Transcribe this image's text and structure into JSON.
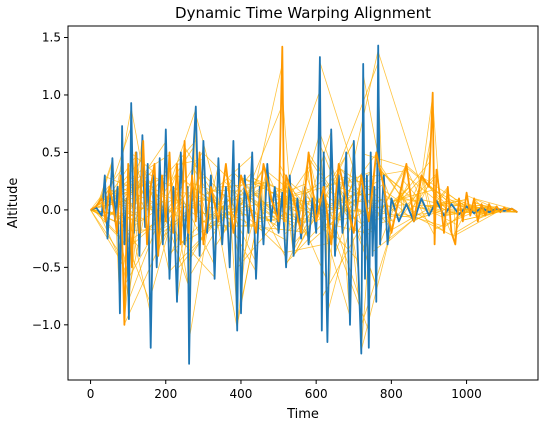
{
  "chart_data": {
    "type": "line",
    "title": "Dynamic Time Warping Alignment",
    "xlabel": "Time",
    "ylabel": "Altitude",
    "xlim": [
      -60,
      1190
    ],
    "ylim": [
      -1.48,
      1.6
    ],
    "x_ticks": [
      0,
      200,
      400,
      600,
      800,
      1000
    ],
    "y_ticks": [
      -1.0,
      -0.5,
      0.0,
      0.5,
      1.0,
      1.5
    ],
    "x_tick_labels": [
      "0",
      "200",
      "400",
      "600",
      "800",
      "1000"
    ],
    "y_tick_labels": [
      "−1.0",
      "−0.5",
      "0.0",
      "0.5",
      "1.0",
      "1.5"
    ],
    "grid": false,
    "legend": "none",
    "series": [
      {
        "color": "#1f77b4",
        "x": [
          0,
          15,
          30,
          38,
          45,
          52,
          58,
          65,
          72,
          78,
          84,
          90,
          96,
          102,
          108,
          115,
          122,
          130,
          138,
          145,
          152,
          160,
          168,
          176,
          184,
          192,
          200,
          210,
          220,
          230,
          240,
          250,
          258,
          262,
          270,
          280,
          290,
          300,
          310,
          320,
          330,
          340,
          350,
          360,
          370,
          380,
          390,
          395,
          400,
          410,
          420,
          430,
          440,
          450,
          460,
          470,
          480,
          490,
          500,
          510,
          520,
          530,
          540,
          550,
          560,
          570,
          580,
          590,
          600,
          605,
          610,
          615,
          620,
          630,
          640,
          650,
          660,
          670,
          680,
          690,
          700,
          710,
          720,
          725,
          730,
          735,
          740,
          745,
          750,
          755,
          760,
          765,
          770,
          780,
          790,
          800,
          820,
          840,
          860,
          880,
          900,
          920,
          940,
          960,
          980,
          1000,
          1020,
          1040,
          1060,
          1080,
          1100,
          1120,
          1135
        ],
        "y": [
          0.0,
          0.02,
          -0.05,
          0.3,
          -0.25,
          0.1,
          0.45,
          -0.1,
          0.2,
          -0.9,
          0.73,
          -0.3,
          0.1,
          -0.95,
          0.93,
          -0.2,
          0.5,
          -0.4,
          0.65,
          -0.15,
          0.4,
          -1.2,
          0.3,
          -0.5,
          0.45,
          -0.3,
          0.7,
          -0.6,
          0.2,
          -0.8,
          0.5,
          -0.3,
          0.2,
          -1.34,
          0.3,
          0.9,
          -0.4,
          0.6,
          -0.2,
          0.3,
          -0.6,
          0.45,
          -0.3,
          0.2,
          -0.5,
          0.6,
          -1.05,
          0.4,
          -0.9,
          0.3,
          -0.2,
          0.5,
          -0.6,
          0.2,
          -0.3,
          0.4,
          -0.1,
          0.2,
          -0.2,
          0.15,
          -0.5,
          0.3,
          -0.4,
          0.1,
          -0.25,
          0.2,
          -0.3,
          0.1,
          -0.2,
          0.3,
          1.33,
          -1.05,
          0.5,
          -1.15,
          0.7,
          -0.4,
          0.3,
          -0.2,
          0.5,
          -1.0,
          0.6,
          -0.3,
          -1.25,
          1.27,
          -0.6,
          0.3,
          -1.2,
          0.5,
          -0.4,
          0.2,
          -0.8,
          1.43,
          -0.3,
          0.3,
          -0.3,
          0.1,
          -0.1,
          0.05,
          -0.1,
          0.1,
          -0.05,
          0.08,
          -0.05,
          0.05,
          -0.04,
          0.03,
          -0.03,
          0.02,
          -0.02,
          0.01,
          -0.01,
          0.01,
          -0.02
        ]
      },
      {
        "color": "#ff9900",
        "x": [
          0,
          15,
          30,
          40,
          50,
          60,
          70,
          80,
          90,
          100,
          110,
          120,
          130,
          140,
          150,
          160,
          170,
          180,
          190,
          200,
          210,
          220,
          230,
          240,
          250,
          260,
          270,
          280,
          290,
          300,
          320,
          340,
          360,
          380,
          400,
          420,
          440,
          460,
          480,
          500,
          510,
          515,
          520,
          540,
          560,
          580,
          600,
          620,
          640,
          660,
          680,
          700,
          720,
          740,
          760,
          780,
          800,
          820,
          840,
          860,
          880,
          900,
          910,
          915,
          920,
          930,
          940,
          950,
          960,
          970,
          980,
          990,
          1000,
          1010,
          1020,
          1030,
          1040,
          1050,
          1060,
          1070,
          1080,
          1090,
          1100,
          1110,
          1120,
          1135
        ],
        "y": [
          0.0,
          0.03,
          0.1,
          -0.1,
          0.2,
          0.05,
          -0.2,
          0.3,
          -1.0,
          0.4,
          -0.5,
          0.5,
          -0.2,
          0.6,
          -0.3,
          0.2,
          0.4,
          -0.4,
          0.3,
          -0.1,
          0.5,
          -0.2,
          0.4,
          -0.3,
          0.6,
          -0.2,
          0.3,
          -0.1,
          0.5,
          -0.3,
          0.2,
          -0.1,
          0.4,
          -0.2,
          0.3,
          0.1,
          -0.2,
          0.4,
          0.1,
          -0.1,
          1.42,
          -0.1,
          0.3,
          0.1,
          -0.2,
          0.5,
          -0.1,
          0.2,
          -0.3,
          0.4,
          0.1,
          -0.2,
          0.3,
          -0.1,
          0.5,
          0.2,
          -0.2,
          0.1,
          0.4,
          -0.1,
          0.3,
          0.2,
          1.02,
          -0.3,
          0.35,
          0.1,
          -0.2,
          0.2,
          -0.2,
          -0.3,
          0.1,
          -0.1,
          0.15,
          -0.05,
          0.1,
          -0.1,
          0.05,
          -0.05,
          0.05,
          -0.03,
          0.03,
          -0.02,
          0.02,
          -0.01,
          0.01,
          -0.02
        ]
      }
    ]
  }
}
